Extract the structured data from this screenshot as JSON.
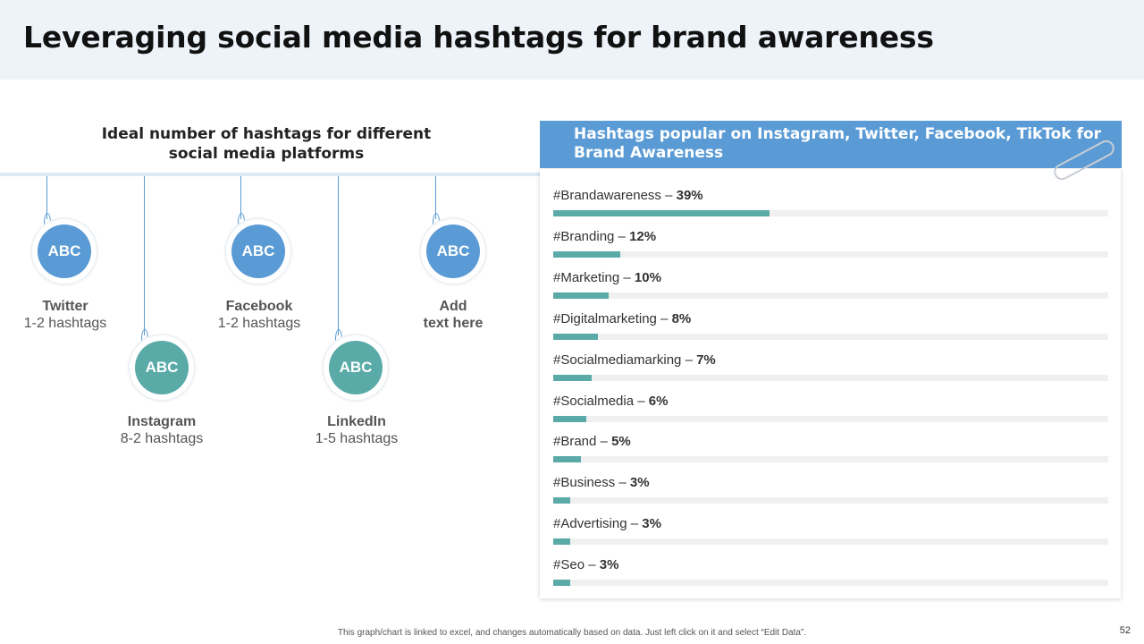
{
  "title": "Leveraging social media hashtags for brand awareness",
  "left_section": {
    "title_line1": "Ideal number of hashtags for different",
    "title_line2": "social media platforms",
    "platforms": [
      {
        "circle_label": "ABC",
        "name": "Twitter",
        "detail": "1-2 hashtags",
        "color": "#5b9bd5"
      },
      {
        "circle_label": "ABC",
        "name": "Instagram",
        "detail": "8-2 hashtags",
        "color": "#5aaaa8"
      },
      {
        "circle_label": "ABC",
        "name": "Facebook",
        "detail": "1-2 hashtags",
        "color": "#5b9bd5"
      },
      {
        "circle_label": "ABC",
        "name": "LinkedIn",
        "detail": "1-5 hashtags",
        "color": "#5aaaa8"
      },
      {
        "circle_label": "ABC",
        "name": "Add",
        "detail": "text here",
        "color": "#5b9bd5"
      }
    ]
  },
  "right_panel": {
    "header_line1": "Hashtags popular on Instagram, Twitter, Facebook, TikTok for",
    "header_line2": "Brand Awareness",
    "header_color": "#5b9bd5",
    "bar_color": "#5aaaa8"
  },
  "chart_data": {
    "type": "bar",
    "categories": [
      "#Brandawareness",
      "#Branding",
      "#Marketing",
      "#Digitalmarketing",
      "#Socialmediamarking",
      "#Socialmedia",
      "#Brand",
      "#Business",
      "#Advertising",
      "#Seo"
    ],
    "values": [
      39,
      12,
      10,
      8,
      7,
      6,
      5,
      3,
      3,
      3
    ],
    "value_labels": [
      "39%",
      "12%",
      "10%",
      "8%",
      "7%",
      "6%",
      "5%",
      "3%",
      "3%",
      "3%"
    ],
    "ylim": [
      0,
      100
    ]
  },
  "footnote": "This graph/chart is linked to excel, and changes automatically based on data. Just left click on it and select “Edit Data”.",
  "page_number": "52"
}
